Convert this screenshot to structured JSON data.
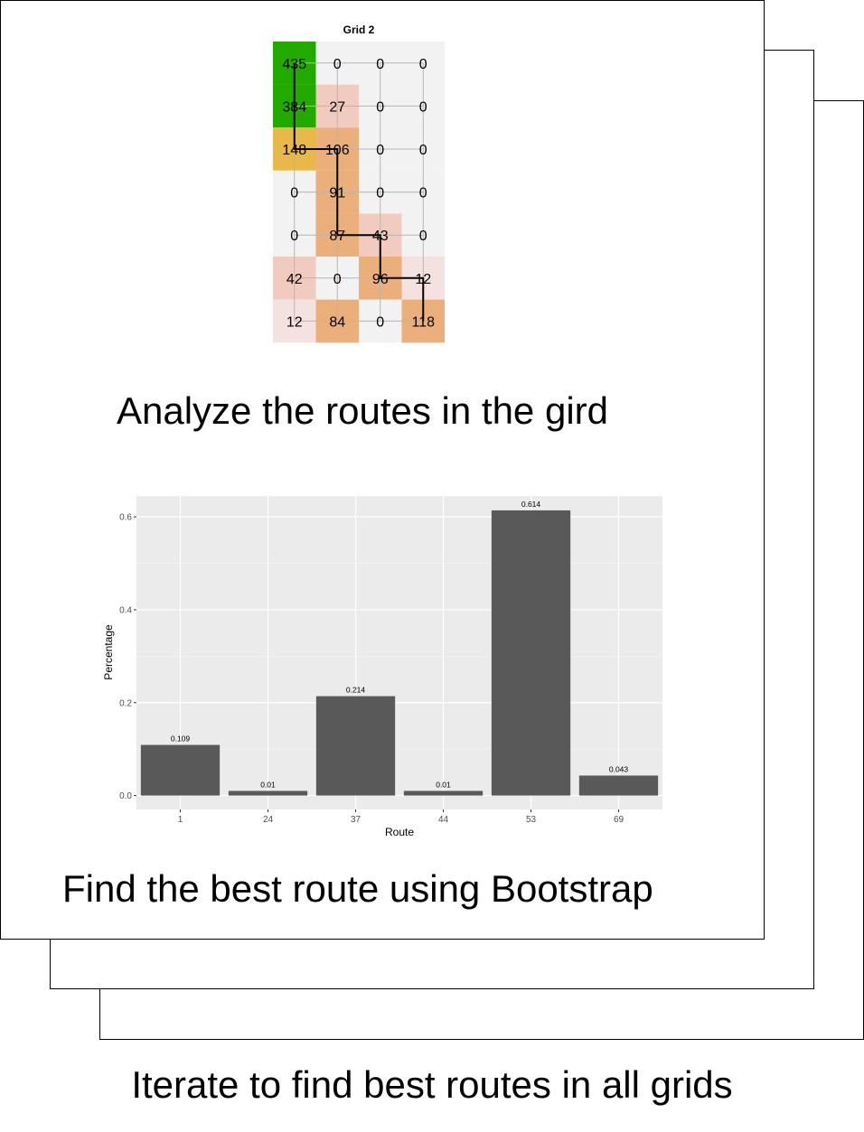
{
  "colors": {
    "green": "#22aa00",
    "gold": "#e8b84a",
    "orange": "#ebaf7b",
    "salmon": "#f2cbc0",
    "pink": "#f3e2df",
    "empty": "#f2f2f2",
    "bar": "#595959",
    "panel": "#ebebeb"
  },
  "grid": {
    "title": "Grid 2",
    "cells": [
      [
        435,
        0,
        0,
        0
      ],
      [
        384,
        27,
        0,
        0
      ],
      [
        148,
        106,
        0,
        0
      ],
      [
        0,
        91,
        0,
        0
      ],
      [
        0,
        87,
        43,
        0
      ],
      [
        42,
        0,
        96,
        12
      ],
      [
        12,
        84,
        0,
        118
      ]
    ],
    "cell_colors": [
      [
        "green",
        "empty",
        "empty",
        "empty"
      ],
      [
        "green",
        "salmon",
        "empty",
        "empty"
      ],
      [
        "gold",
        "orange",
        "empty",
        "empty"
      ],
      [
        "empty",
        "orange",
        "empty",
        "empty"
      ],
      [
        "empty",
        "orange",
        "salmon",
        "empty"
      ],
      [
        "salmon",
        "empty",
        "orange",
        "pink"
      ],
      [
        "pink",
        "orange",
        "empty",
        "orange"
      ]
    ],
    "best_route": [
      [
        0,
        0
      ],
      [
        1,
        0
      ],
      [
        2,
        0
      ],
      [
        2,
        1
      ],
      [
        3,
        1
      ],
      [
        4,
        1
      ],
      [
        4,
        2
      ],
      [
        5,
        2
      ],
      [
        5,
        3
      ],
      [
        6,
        3
      ]
    ],
    "other_route": [
      [
        0,
        0
      ],
      [
        6,
        0
      ],
      [
        6,
        3
      ]
    ]
  },
  "captions": {
    "analyze": "Analyze the routes in the gird",
    "bootstrap": "Find the best route using Bootstrap",
    "iterate": "Iterate to find best routes in all grids"
  },
  "chart_data": {
    "type": "bar",
    "categories": [
      "1",
      "24",
      "37",
      "44",
      "53",
      "69"
    ],
    "values": [
      0.109,
      0.01,
      0.214,
      0.01,
      0.614,
      0.043
    ],
    "data_labels": [
      "0.109",
      "0.01",
      "0.214",
      "0.01",
      "0.614",
      "0.043"
    ],
    "title": "",
    "xlabel": "Route",
    "ylabel": "Percentage",
    "ylim": [
      -0.03,
      0.645
    ],
    "yticks": [
      0.0,
      0.2,
      0.4,
      0.6
    ],
    "ytick_labels": [
      "0.0",
      "0.2",
      "0.4",
      "0.6"
    ],
    "grid": true,
    "legend": "none"
  }
}
